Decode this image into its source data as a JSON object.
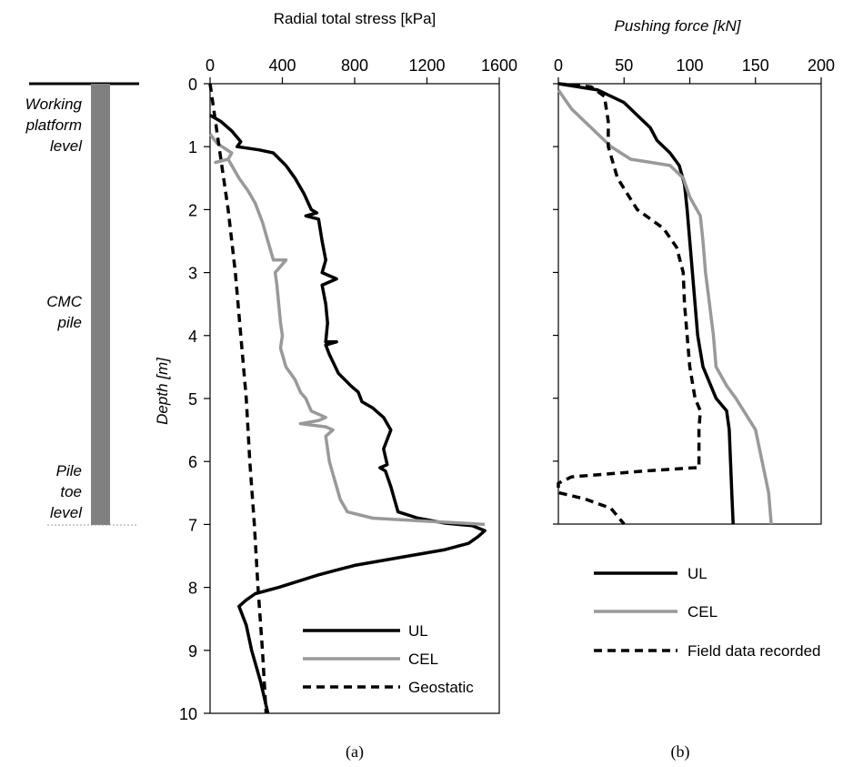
{
  "schematic": {
    "working_platform_label": [
      "Working",
      "platform",
      "level"
    ],
    "pile_label": [
      "CMC",
      "pile"
    ],
    "toe_label": [
      "Pile",
      "toe",
      "level"
    ]
  },
  "chart_data": [
    {
      "id": "a",
      "type": "line",
      "caption": "(a)",
      "title": "",
      "xlabel": "Radial total stress [kPa]",
      "ylabel": "Depth [m]",
      "xlim": [
        0,
        1600
      ],
      "ylim": [
        0,
        10
      ],
      "y_inverted": true,
      "x_axis_position": "top",
      "x_ticks": [
        "0",
        "400",
        "800",
        "1200",
        "1600"
      ],
      "y_ticks": [
        "0",
        "1",
        "2",
        "3",
        "4",
        "5",
        "6",
        "7",
        "8",
        "9",
        "10"
      ],
      "legend_position": "bottom-right",
      "series": [
        {
          "name": "UL",
          "color": "#000000",
          "style": "solid",
          "points": [
            [
              0,
              0.5
            ],
            [
              60,
              0.6
            ],
            [
              120,
              0.75
            ],
            [
              170,
              0.92
            ],
            [
              150,
              1.0
            ],
            [
              270,
              1.05
            ],
            [
              350,
              1.1
            ],
            [
              420,
              1.3
            ],
            [
              470,
              1.5
            ],
            [
              520,
              1.75
            ],
            [
              560,
              2.0
            ],
            [
              590,
              2.05
            ],
            [
              530,
              2.1
            ],
            [
              600,
              2.15
            ],
            [
              620,
              2.5
            ],
            [
              640,
              2.8
            ],
            [
              620,
              3.0
            ],
            [
              700,
              3.1
            ],
            [
              620,
              3.2
            ],
            [
              640,
              3.5
            ],
            [
              650,
              3.8
            ],
            [
              640,
              4.1
            ],
            [
              700,
              4.1
            ],
            [
              640,
              4.15
            ],
            [
              660,
              4.3
            ],
            [
              710,
              4.6
            ],
            [
              780,
              4.8
            ],
            [
              820,
              4.9
            ],
            [
              840,
              5.05
            ],
            [
              900,
              5.15
            ],
            [
              960,
              5.3
            ],
            [
              1000,
              5.5
            ],
            [
              960,
              5.8
            ],
            [
              980,
              6.05
            ],
            [
              940,
              6.1
            ],
            [
              970,
              6.15
            ],
            [
              1000,
              6.4
            ],
            [
              1020,
              6.6
            ],
            [
              1040,
              6.8
            ],
            [
              1150,
              6.9
            ],
            [
              1300,
              6.98
            ],
            [
              1450,
              7.02
            ],
            [
              1520,
              7.1
            ],
            [
              1480,
              7.2
            ],
            [
              1430,
              7.3
            ],
            [
              1300,
              7.4
            ],
            [
              1100,
              7.5
            ],
            [
              800,
              7.65
            ],
            [
              600,
              7.8
            ],
            [
              380,
              8.0
            ],
            [
              250,
              8.1
            ],
            [
              200,
              8.2
            ],
            [
              160,
              8.3
            ],
            [
              200,
              8.6
            ],
            [
              230,
              9.0
            ],
            [
              280,
              9.5
            ],
            [
              320,
              10.0
            ]
          ]
        },
        {
          "name": "CEL",
          "color": "#999999",
          "style": "solid",
          "points": [
            [
              0,
              0.8
            ],
            [
              40,
              0.95
            ],
            [
              120,
              1.1
            ],
            [
              100,
              1.2
            ],
            [
              30,
              1.25
            ],
            [
              100,
              1.2
            ],
            [
              160,
              1.5
            ],
            [
              210,
              1.7
            ],
            [
              250,
              1.9
            ],
            [
              290,
              2.2
            ],
            [
              310,
              2.4
            ],
            [
              330,
              2.6
            ],
            [
              350,
              2.8
            ],
            [
              420,
              2.8
            ],
            [
              360,
              3.0
            ],
            [
              370,
              3.2
            ],
            [
              380,
              3.5
            ],
            [
              390,
              3.8
            ],
            [
              400,
              4.0
            ],
            [
              390,
              4.2
            ],
            [
              400,
              4.3
            ],
            [
              420,
              4.5
            ],
            [
              470,
              4.7
            ],
            [
              500,
              4.9
            ],
            [
              530,
              5.0
            ],
            [
              560,
              5.2
            ],
            [
              640,
              5.3
            ],
            [
              600,
              5.35
            ],
            [
              500,
              5.4
            ],
            [
              640,
              5.45
            ],
            [
              680,
              5.5
            ],
            [
              640,
              5.6
            ],
            [
              660,
              6.0
            ],
            [
              680,
              6.2
            ],
            [
              700,
              6.4
            ],
            [
              720,
              6.6
            ],
            [
              760,
              6.8
            ],
            [
              900,
              6.9
            ],
            [
              1200,
              6.95
            ],
            [
              1400,
              6.98
            ],
            [
              1520,
              7.0
            ]
          ]
        },
        {
          "name": "Geostatic",
          "color": "#000000",
          "style": "dashed",
          "points": [
            [
              0,
              0
            ],
            [
              50,
              1.0
            ],
            [
              100,
              2.0
            ],
            [
              140,
              3.0
            ],
            [
              170,
              4.0
            ],
            [
              200,
              5.0
            ],
            [
              220,
              6.0
            ],
            [
              245,
              7.0
            ],
            [
              265,
              8.0
            ],
            [
              290,
              9.0
            ],
            [
              310,
              10.0
            ]
          ]
        }
      ]
    },
    {
      "id": "b",
      "type": "line",
      "caption": "(b)",
      "title": "",
      "xlabel": "Pushing force [kN]",
      "ylabel": "",
      "xlim": [
        0,
        200
      ],
      "ylim": [
        0,
        7
      ],
      "y_inverted": true,
      "x_axis_position": "top",
      "x_ticks": [
        "0",
        "50",
        "100",
        "150",
        "200"
      ],
      "y_ticks": [],
      "legend_position": "below",
      "series": [
        {
          "name": "UL",
          "color": "#000000",
          "style": "solid",
          "points": [
            [
              0,
              0
            ],
            [
              30,
              0.1
            ],
            [
              50,
              0.3
            ],
            [
              60,
              0.5
            ],
            [
              70,
              0.7
            ],
            [
              75,
              0.9
            ],
            [
              85,
              1.1
            ],
            [
              92,
              1.3
            ],
            [
              96,
              1.6
            ],
            [
              98,
              2.0
            ],
            [
              100,
              2.5
            ],
            [
              102,
              3.0
            ],
            [
              104,
              3.5
            ],
            [
              106,
              4.0
            ],
            [
              110,
              4.5
            ],
            [
              120,
              5.0
            ],
            [
              128,
              5.2
            ],
            [
              130,
              5.5
            ],
            [
              131,
              6.0
            ],
            [
              132,
              6.5
            ],
            [
              133,
              7.0
            ]
          ]
        },
        {
          "name": "CEL",
          "color": "#999999",
          "style": "solid",
          "points": [
            [
              0,
              0.1
            ],
            [
              10,
              0.4
            ],
            [
              25,
              0.7
            ],
            [
              40,
              1.0
            ],
            [
              55,
              1.2
            ],
            [
              70,
              1.25
            ],
            [
              85,
              1.3
            ],
            [
              95,
              1.5
            ],
            [
              100,
              1.8
            ],
            [
              108,
              2.1
            ],
            [
              110,
              2.5
            ],
            [
              112,
              3.0
            ],
            [
              115,
              3.5
            ],
            [
              118,
              4.0
            ],
            [
              120,
              4.5
            ],
            [
              128,
              4.8
            ],
            [
              135,
              5.0
            ],
            [
              150,
              5.5
            ],
            [
              155,
              6.0
            ],
            [
              160,
              6.5
            ],
            [
              162,
              7.0
            ]
          ]
        },
        {
          "name": "Field data recorded",
          "color": "#000000",
          "style": "dashed",
          "points": [
            [
              0,
              0
            ],
            [
              25,
              0.05
            ],
            [
              35,
              0.2
            ],
            [
              38,
              0.6
            ],
            [
              38,
              1.0
            ],
            [
              45,
              1.5
            ],
            [
              60,
              2.0
            ],
            [
              80,
              2.3
            ],
            [
              90,
              2.6
            ],
            [
              95,
              3.0
            ],
            [
              96,
              3.5
            ],
            [
              98,
              4.0
            ],
            [
              100,
              4.5
            ],
            [
              104,
              5.0
            ],
            [
              108,
              5.2
            ],
            [
              107,
              5.5
            ],
            [
              107,
              6.1
            ],
            [
              70,
              6.15
            ],
            [
              10,
              6.25
            ],
            [
              0,
              6.35
            ],
            [
              0,
              6.5
            ],
            [
              20,
              6.6
            ],
            [
              40,
              6.75
            ],
            [
              50,
              7.0
            ]
          ]
        }
      ]
    }
  ]
}
